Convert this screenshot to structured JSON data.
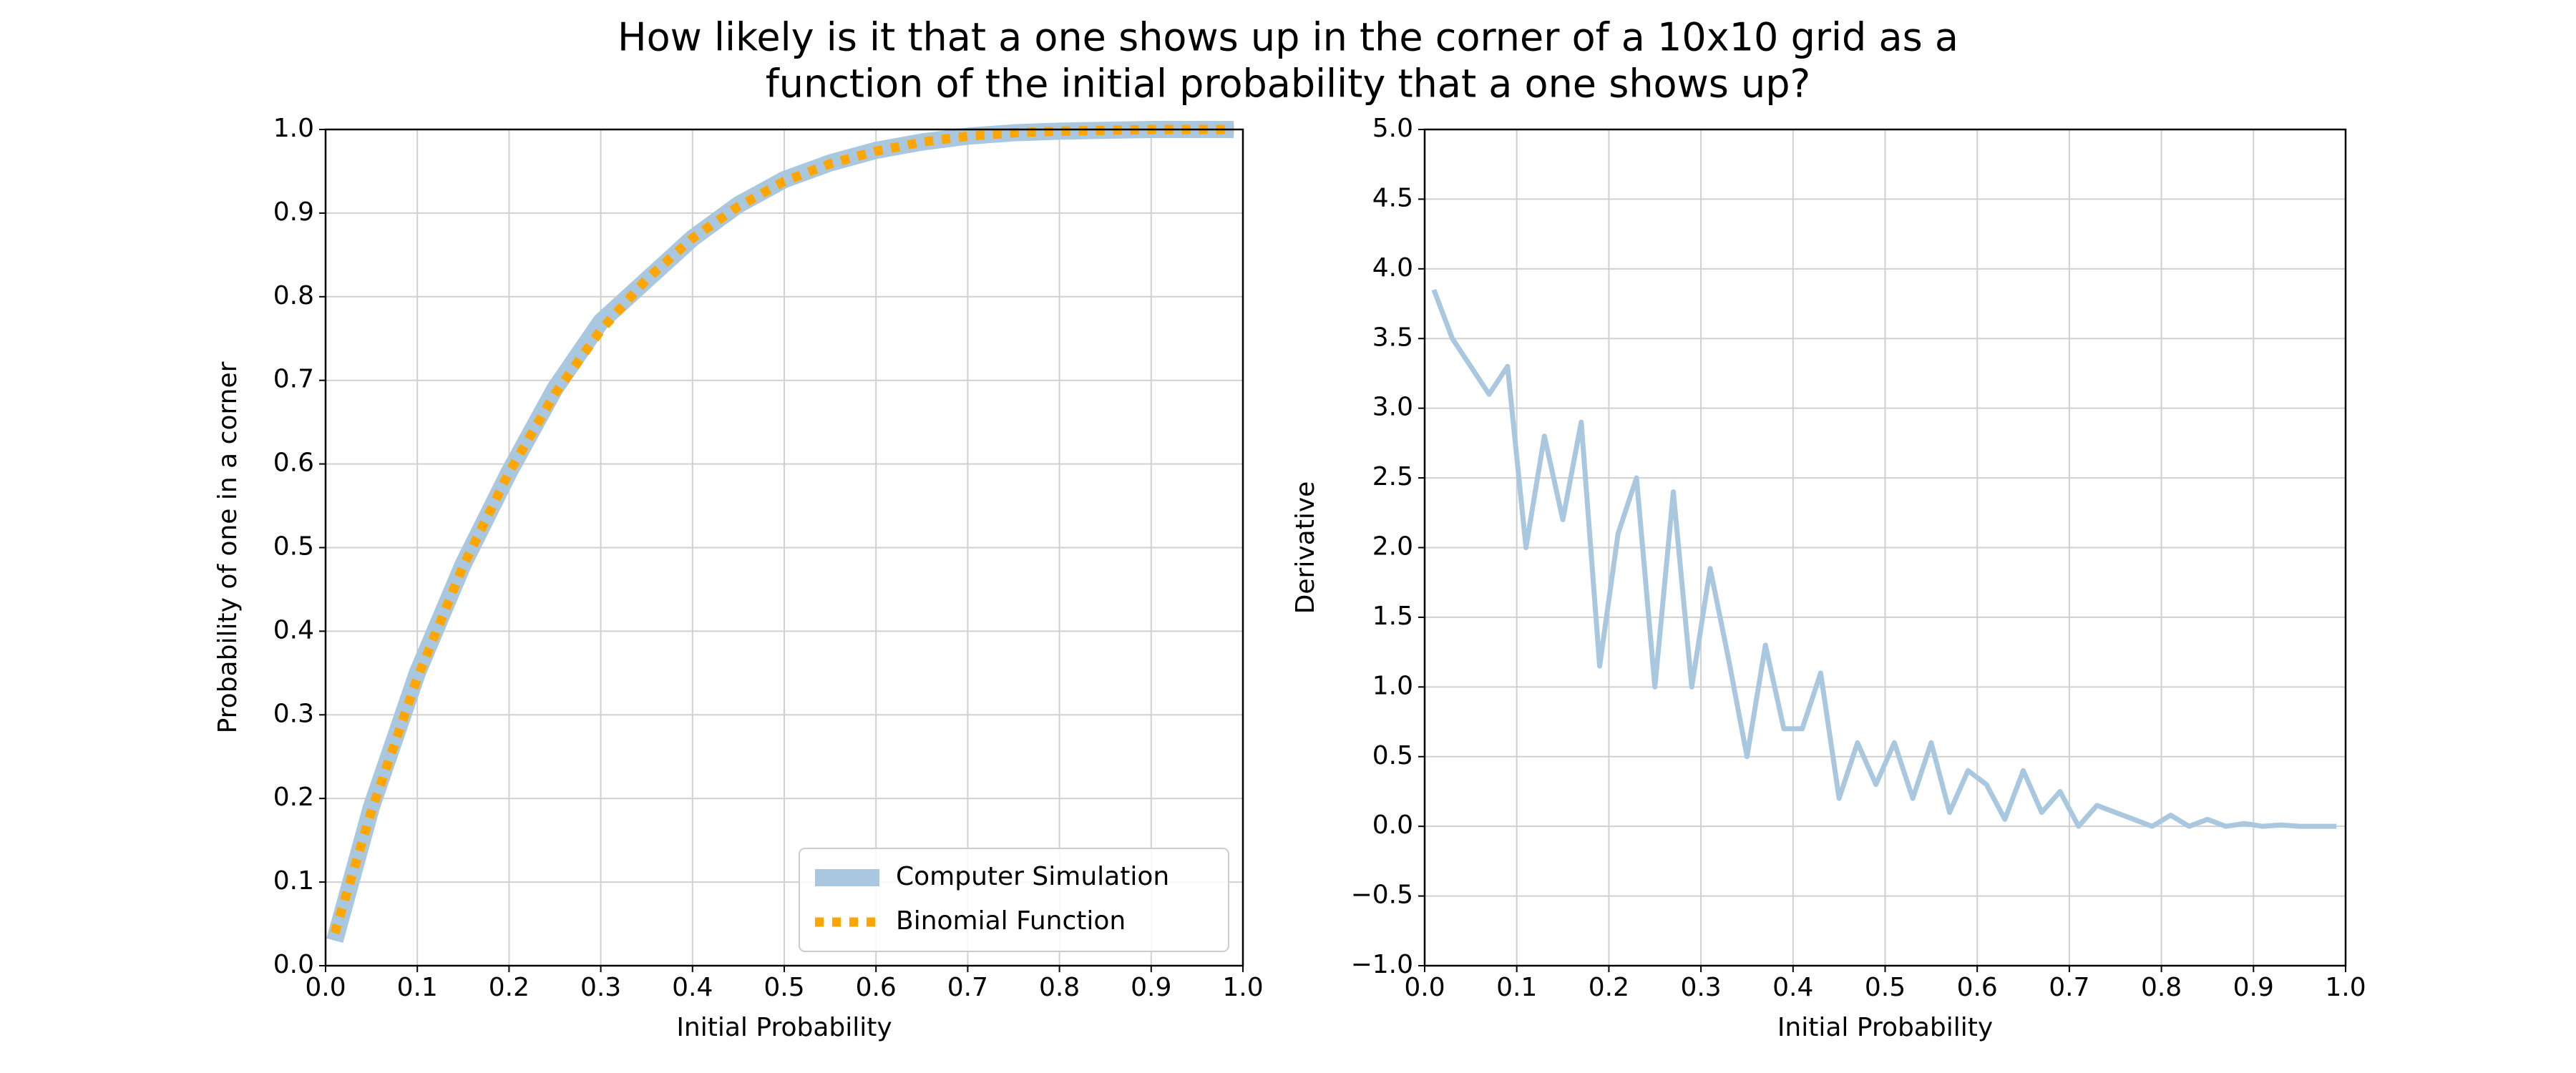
{
  "title": [
    "How likely is it that a one shows up in the corner of a 10x10 grid as a",
    "function of the initial probability that a one shows up?"
  ],
  "chart_data": [
    {
      "type": "line",
      "xlabel": "Initial Probability",
      "ylabel": "Probability of one in a corner",
      "x": [
        0.01,
        0.05,
        0.1,
        0.15,
        0.2,
        0.25,
        0.3,
        0.35,
        0.4,
        0.45,
        0.5,
        0.55,
        0.6,
        0.65,
        0.7,
        0.75,
        0.8,
        0.85,
        0.9,
        0.95,
        0.99
      ],
      "series": [
        {
          "name": "Computer Simulation",
          "color": "#a9c8e0",
          "linestyle": "solid",
          "values": [
            0.03,
            0.19,
            0.35,
            0.48,
            0.59,
            0.69,
            0.77,
            0.82,
            0.87,
            0.91,
            0.94,
            0.96,
            0.975,
            0.985,
            0.992,
            0.996,
            0.998,
            0.999,
            1.0,
            1.0,
            1.0
          ]
        },
        {
          "name": "Binomial Function",
          "color": "#ffa500",
          "linestyle": "dotted",
          "values": [
            0.039,
            0.185,
            0.344,
            0.478,
            0.59,
            0.684,
            0.76,
            0.821,
            0.87,
            0.908,
            0.938,
            0.959,
            0.974,
            0.985,
            0.992,
            0.996,
            0.998,
            0.999,
            1.0,
            1.0,
            1.0
          ]
        }
      ],
      "xlim": [
        0,
        1
      ],
      "ylim": [
        0,
        1
      ],
      "xticks": [
        {
          "value": 0,
          "label": "0.0"
        },
        0.1,
        0.2,
        0.3,
        0.4,
        0.5,
        0.6,
        0.7,
        0.8,
        0.9,
        {
          "value": 1,
          "label": "1.0"
        }
      ],
      "yticks": [
        {
          "value": 0,
          "label": "0.0"
        },
        0.1,
        0.2,
        0.3,
        0.4,
        0.5,
        0.6,
        0.7,
        0.8,
        0.9,
        {
          "value": 1,
          "label": "1.0"
        }
      ],
      "grid": true,
      "legend": "lower right"
    },
    {
      "type": "line",
      "xlabel": "Initial Probability",
      "ylabel": "Derivative",
      "color": "#a9c8e0",
      "x": [
        0.01,
        0.03,
        0.05,
        0.07,
        0.09,
        0.11,
        0.13,
        0.15,
        0.17,
        0.19,
        0.21,
        0.23,
        0.25,
        0.27,
        0.29,
        0.31,
        0.33,
        0.35,
        0.37,
        0.39,
        0.41,
        0.43,
        0.45,
        0.47,
        0.49,
        0.51,
        0.53,
        0.55,
        0.57,
        0.59,
        0.61,
        0.63,
        0.65,
        0.67,
        0.69,
        0.71,
        0.73,
        0.75,
        0.77,
        0.79,
        0.81,
        0.83,
        0.85,
        0.87,
        0.89,
        0.91,
        0.93,
        0.95,
        0.97,
        0.99
      ],
      "values": [
        3.85,
        3.5,
        3.3,
        3.1,
        3.3,
        2.0,
        2.8,
        2.2,
        2.9,
        1.15,
        2.1,
        2.5,
        1.0,
        2.4,
        1.0,
        1.85,
        1.2,
        0.5,
        1.3,
        0.7,
        0.7,
        1.1,
        0.2,
        0.6,
        0.3,
        0.6,
        0.2,
        0.6,
        0.1,
        0.4,
        0.3,
        0.05,
        0.4,
        0.1,
        0.25,
        0.0,
        0.15,
        0.1,
        0.05,
        0.0,
        0.08,
        0.0,
        0.05,
        0.0,
        0.02,
        0.0,
        0.01,
        0.0,
        0.0,
        0.0
      ],
      "xlim": [
        0,
        1
      ],
      "ylim": [
        -1,
        5
      ],
      "xticks": [
        {
          "value": 0,
          "label": "0.0"
        },
        0.1,
        0.2,
        0.3,
        0.4,
        0.5,
        0.6,
        0.7,
        0.8,
        0.9,
        {
          "value": 1,
          "label": "1.0"
        }
      ],
      "yticks": [
        {
          "value": -1,
          "label": "−1.0"
        },
        {
          "value": -0.5,
          "label": "−0.5"
        },
        {
          "value": 0,
          "label": "0.0"
        },
        0.5,
        {
          "value": 1,
          "label": "1.0"
        },
        1.5,
        {
          "value": 2,
          "label": "2.0"
        },
        2.5,
        {
          "value": 3,
          "label": "3.0"
        },
        3.5,
        {
          "value": 4,
          "label": "4.0"
        },
        4.5,
        {
          "value": 5,
          "label": "5.0"
        }
      ],
      "grid": true
    }
  ]
}
